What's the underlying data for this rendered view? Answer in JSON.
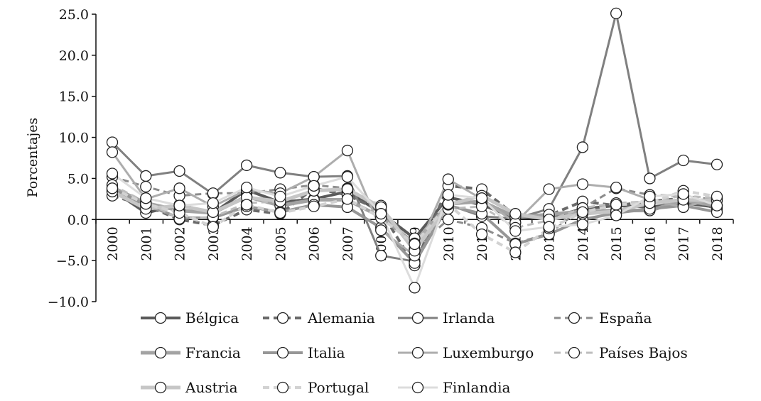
{
  "chart_data": {
    "type": "line",
    "title": "",
    "xlabel": "",
    "ylabel": "Porcentajes",
    "ylim": [
      -10,
      25
    ],
    "yticks": [
      "−10.0",
      "−5.0",
      "0.0",
      "5.0",
      "10.0",
      "15.0",
      "20.0",
      "25.0"
    ],
    "ytick_values": [
      -10,
      -5,
      0,
      5,
      10,
      15,
      20,
      25
    ],
    "x": [
      "2000",
      "2001",
      "2002",
      "2003",
      "2004",
      "2005",
      "2006",
      "2007",
      "2008",
      "2009",
      "2010",
      "2011",
      "2012",
      "2013",
      "2014",
      "2015",
      "2016",
      "2017",
      "2018"
    ],
    "grid": false,
    "legend": "bottom",
    "series": [
      {
        "name": "Bélgica",
        "color": "#5a5a5a",
        "dash": "solid",
        "width": 4,
        "values": [
          3.6,
          0.8,
          1.8,
          0.8,
          3.6,
          2.1,
          2.5,
          3.4,
          0.8,
          -2.3,
          2.7,
          1.8,
          0.2,
          0.2,
          1.3,
          1.7,
          1.5,
          2.0,
          1.5
        ]
      },
      {
        "name": "Alemania",
        "color": "#6a6a6a",
        "dash": "dash",
        "width": 4,
        "values": [
          2.9,
          1.7,
          0.0,
          -0.7,
          1.2,
          0.7,
          3.8,
          3.0,
          1.0,
          -5.6,
          4.1,
          3.7,
          0.5,
          0.5,
          2.2,
          1.7,
          2.2,
          2.6,
          1.3
        ]
      },
      {
        "name": "Irlanda",
        "color": "#808080",
        "dash": "solid",
        "width": 3,
        "values": [
          9.4,
          5.3,
          5.9,
          3.1,
          6.6,
          5.7,
          5.2,
          5.3,
          -4.4,
          -5.1,
          1.8,
          0.4,
          0.1,
          1.3,
          8.8,
          25.1,
          5.0,
          7.2,
          6.7
        ]
      },
      {
        "name": "España",
        "color": "#8c8c8c",
        "dash": "dash",
        "width": 3,
        "values": [
          5.2,
          4.0,
          2.9,
          3.2,
          3.2,
          3.7,
          4.2,
          3.8,
          1.1,
          -3.6,
          0.0,
          -1.0,
          -2.9,
          -1.7,
          1.4,
          3.8,
          3.0,
          2.9,
          2.4
        ]
      },
      {
        "name": "Francia",
        "color": "#a3a3a3",
        "dash": "solid",
        "width": 5,
        "values": [
          3.9,
          2.0,
          1.1,
          0.8,
          2.8,
          1.7,
          2.4,
          2.4,
          0.3,
          -2.9,
          1.9,
          2.2,
          0.3,
          0.6,
          1.0,
          1.1,
          1.1,
          2.3,
          1.7
        ]
      },
      {
        "name": "Italia",
        "color": "#969696",
        "dash": "solid",
        "width": 4,
        "values": [
          3.7,
          1.8,
          0.2,
          0.2,
          1.6,
          0.9,
          1.8,
          1.5,
          -1.0,
          -5.3,
          1.7,
          0.7,
          -3.0,
          -1.8,
          0.0,
          0.8,
          1.3,
          1.7,
          0.9
        ]
      },
      {
        "name": "Luxemburgo",
        "color": "#adadad",
        "dash": "solid",
        "width": 3,
        "values": [
          8.2,
          2.5,
          3.8,
          1.6,
          3.6,
          3.2,
          5.2,
          8.4,
          -1.3,
          -4.4,
          4.9,
          2.5,
          -0.4,
          3.7,
          4.3,
          3.9,
          2.4,
          1.5,
          2.6
        ]
      },
      {
        "name": "Países Bajos",
        "color": "#bdbdbd",
        "dash": "dash",
        "width": 3,
        "values": [
          4.2,
          2.1,
          0.1,
          0.3,
          2.0,
          2.2,
          3.5,
          3.7,
          1.7,
          -3.7,
          1.3,
          1.6,
          -1.0,
          -0.1,
          1.4,
          2.0,
          2.2,
          2.9,
          2.6
        ]
      },
      {
        "name": "Austria",
        "color": "#c6c6c6",
        "dash": "solid",
        "width": 5,
        "values": [
          3.4,
          1.3,
          1.7,
          0.9,
          2.7,
          2.2,
          3.5,
          3.7,
          1.5,
          -3.8,
          1.8,
          2.9,
          0.7,
          0.0,
          0.7,
          1.0,
          2.0,
          2.4,
          2.3
        ]
      },
      {
        "name": "Portugal",
        "color": "#d2d2d2",
        "dash": "dash",
        "width": 4,
        "values": [
          3.8,
          1.9,
          0.8,
          -0.9,
          1.8,
          0.8,
          1.6,
          2.5,
          0.2,
          -3.0,
          1.9,
          -1.8,
          -4.0,
          -1.1,
          0.9,
          1.8,
          2.0,
          3.5,
          2.8
        ]
      },
      {
        "name": "Finlandia",
        "color": "#dcdcdc",
        "dash": "solid",
        "width": 3,
        "values": [
          5.6,
          2.6,
          1.7,
          2.0,
          3.9,
          2.8,
          4.1,
          5.2,
          0.7,
          -8.3,
          3.0,
          2.6,
          -1.4,
          -0.9,
          -0.6,
          0.5,
          2.8,
          3.1,
          1.7
        ]
      }
    ]
  }
}
